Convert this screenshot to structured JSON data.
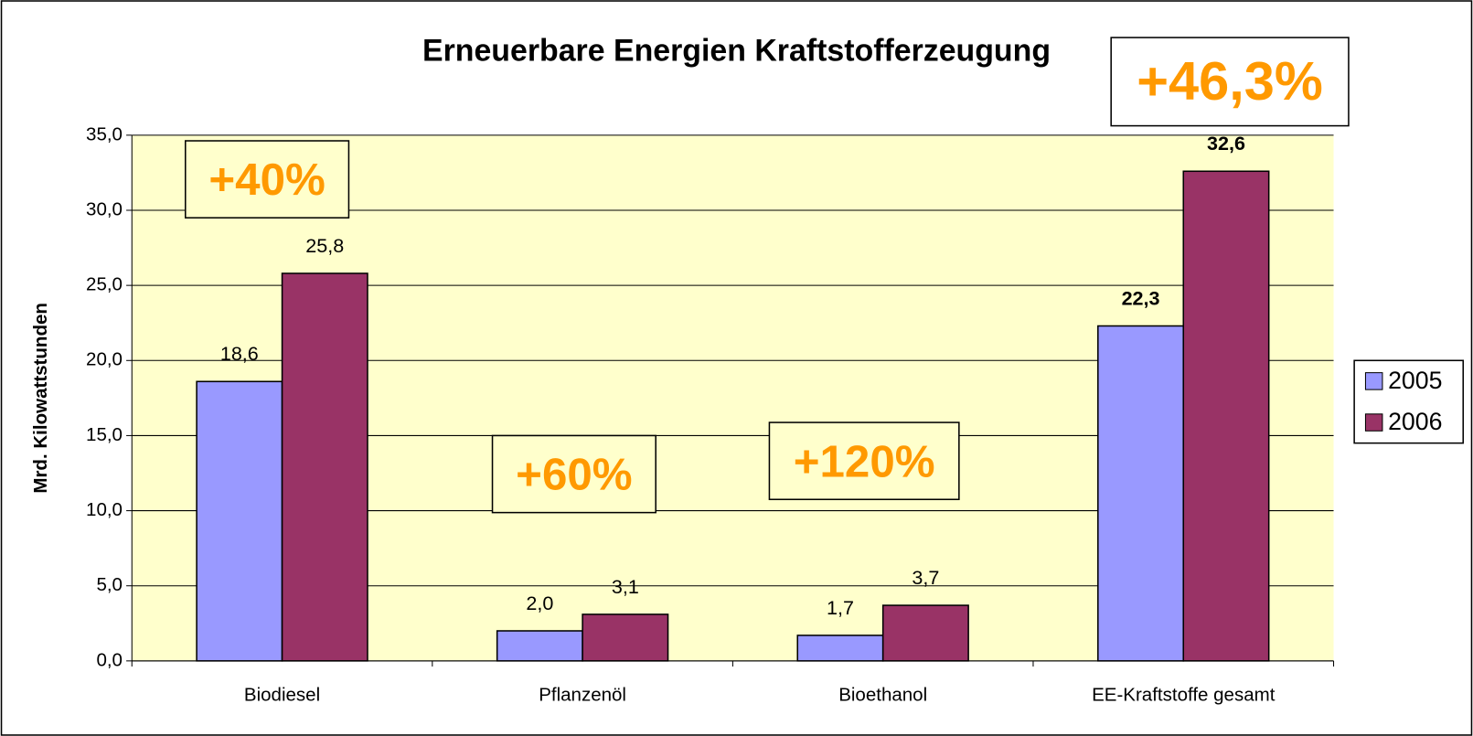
{
  "chart_data": {
    "type": "bar",
    "title": "Erneuerbare Energien Kraftstofferzeugung",
    "y_label": "Mrd. Kilowattstunden",
    "categories": [
      "Biodiesel",
      "Pflanzenöl",
      "Bioethanol",
      "EE-Kraftstoffe gesamt"
    ],
    "series": [
      {
        "name": "2005",
        "color": "#9999ff",
        "values": [
          18.6,
          2.0,
          1.7,
          22.3
        ],
        "value_labels": [
          "18,6",
          "2,0",
          "1,7",
          "22,3"
        ]
      },
      {
        "name": "2006",
        "color": "#993366",
        "values": [
          25.8,
          3.1,
          3.7,
          32.6
        ],
        "value_labels": [
          "25,8",
          "3,1",
          "3,7",
          "32,6"
        ]
      }
    ],
    "ylim": [
      0,
      35
    ],
    "yticks": [
      {
        "value": 0,
        "label": "0,0"
      },
      {
        "value": 5,
        "label": "5,0"
      },
      {
        "value": 10,
        "label": "10,0"
      },
      {
        "value": 15,
        "label": "15,0"
      },
      {
        "value": 20,
        "label": "20,0"
      },
      {
        "value": 25,
        "label": "25,0"
      },
      {
        "value": 30,
        "label": "30,0"
      },
      {
        "value": 35,
        "label": "35,0"
      }
    ],
    "grid": true,
    "plot_background": "#ffffcc",
    "legend_position": "right",
    "annotations": [
      "+40%",
      "+60%",
      "+120%",
      "+46,3%"
    ],
    "annotation_color": "#ff9900"
  }
}
